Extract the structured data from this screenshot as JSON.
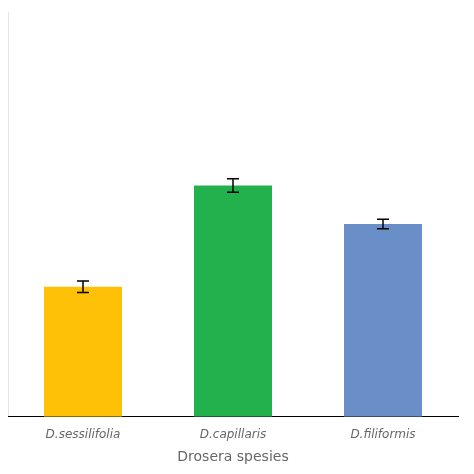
{
  "chart_data": {
    "type": "bar",
    "xlabel": "Drosera spesies",
    "categories": [
      "D.sessilifolia",
      "D.capillaris",
      "D.filiformis"
    ],
    "values": [
      13.5,
      24.0,
      20.0
    ],
    "errors": [
      0.6,
      0.7,
      0.5
    ],
    "colors": [
      "#FFC107",
      "#22B14C",
      "#6A8FC8"
    ],
    "ylim": [
      0,
      42
    ],
    "grid": false,
    "tick_labels": "x"
  }
}
